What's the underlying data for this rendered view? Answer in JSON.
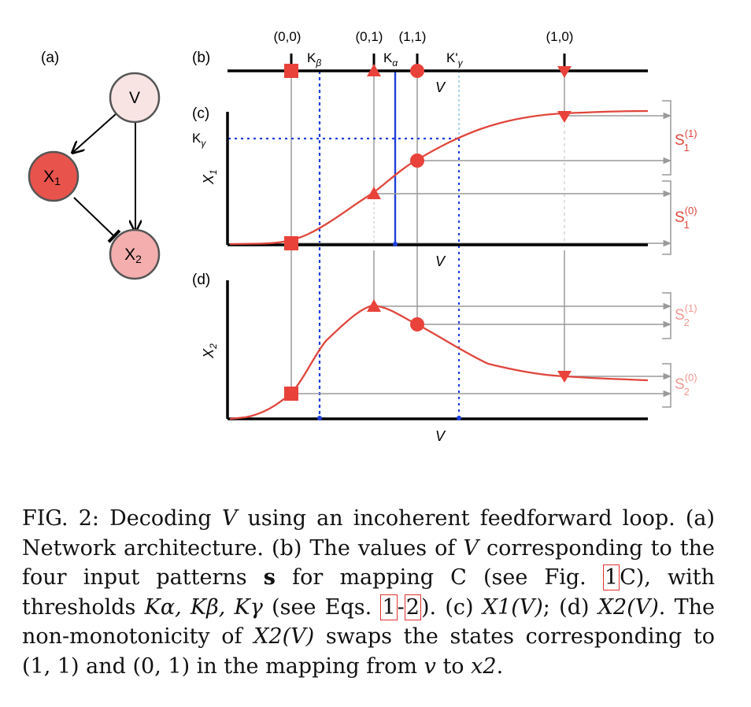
{
  "panels": {
    "a": "(a)",
    "b": "(b)",
    "c": "(c)",
    "d": "(d)"
  },
  "network": {
    "node_v": "V",
    "node_x1": "X",
    "node_x1_sub": "1",
    "node_x2": "X",
    "node_x2_sub": "2",
    "colors": {
      "v": "#f9e4e4",
      "x1": "#e8534c",
      "x2": "#f4aeae"
    }
  },
  "patterns": {
    "p00": "(0,0)",
    "p01": "(0,1)",
    "p11": "(1,1)",
    "p10": "(1,0)"
  },
  "thresholds": {
    "k": "K",
    "k_beta_sub": "β",
    "k_alpha_sub": "α",
    "k_gamma_prime": "K'",
    "k_gamma_sub": "γ"
  },
  "axes": {
    "v_label": "V",
    "x1_label": "X",
    "x1_sub": "1",
    "x2_label": "X",
    "x2_sub": "2"
  },
  "outputs": {
    "s": "S",
    "s1_1_sup": "(1)",
    "s1_1_sub": "1",
    "s1_0_sup": "(0)",
    "s1_0_sub": "1",
    "s2_1_sup": "(1)",
    "s2_1_sub": "2",
    "s2_0_sup": "(0)",
    "s2_0_sub": "2"
  },
  "colors": {
    "curve": "#e0463c",
    "threshold": "#1f3fdc",
    "threshold_light": "#a9d6e6",
    "guide": "#9a9a9a",
    "axis": "#000000",
    "s1_label": "#e0463c",
    "s2_label": "#f09a92"
  },
  "caption": {
    "fig": "FIG. 2:",
    "t1": " Decoding ",
    "v1": "V",
    "t2": " using an incoherent feedforward loop. (a) Network architecture. (b) The values of ",
    "v2": "V",
    "t3": " corresponding to the four input patterns ",
    "s_bold": "s",
    "t4": " for mapping C (see Fig. ",
    "ref1": "1",
    "t5": "C), with thresholds ",
    "k_list": "Kα, Kβ, Kγ",
    "t6": " (see Eqs. ",
    "ref2": "1",
    "dash": "-",
    "ref3": "2",
    "t7": "). (c) ",
    "x1v": "X1(V)",
    "t8": "; (d) ",
    "x2v": "X2(V)",
    "t9": ". The non-monotonicity of ",
    "x2v_b": "X2(V)",
    "t10": " swaps the states corresponding to (1, 1) and (0, 1) in the mapping from ",
    "v_small": "v",
    "t11": " to ",
    "x2_small": "x2",
    "t12": "."
  }
}
